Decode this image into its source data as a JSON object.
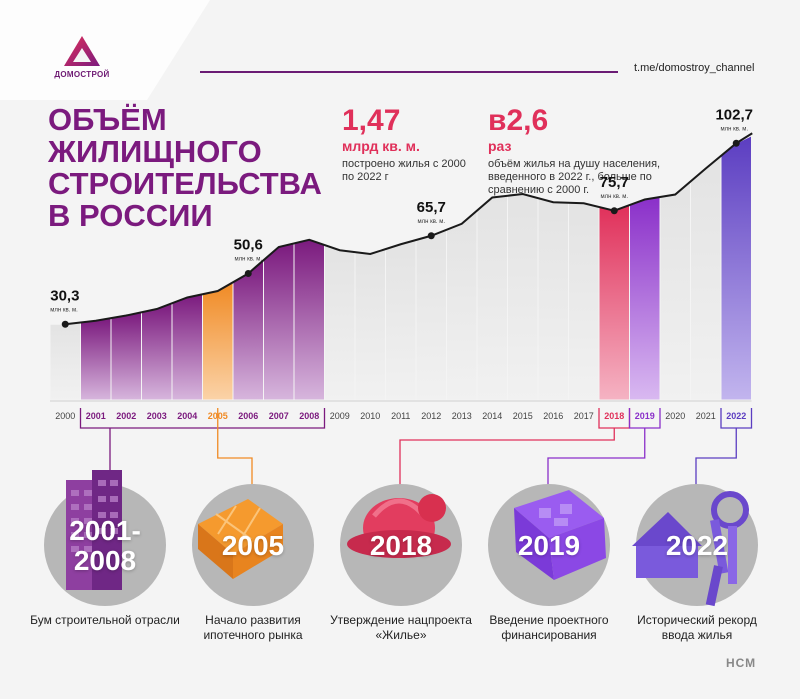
{
  "header": {
    "logo_text": "ДОМОСТРОЙ",
    "channel": "t.me/domostroy_channel"
  },
  "title": "Объём жилищного строительства в России",
  "stats": [
    {
      "value": "1,47",
      "unit": "млрд кв. м.",
      "desc": "построено жилья с 2000 по 2022 г"
    },
    {
      "value": "в2,6",
      "unit": "раз",
      "desc": "объём жилья на душу населения, введенного в 2022 г., больше по сравнению с 2000 г."
    }
  ],
  "colors": {
    "brand_purple": "#7b1a7e",
    "accent_red": "#e0305a",
    "orange": "#f08a24",
    "violet": "#8a2fc9",
    "indigo": "#5b3dc1",
    "grey_bar": "#e6e6e6"
  },
  "chart_data": {
    "type": "area",
    "unit_label": "млн кв. м.",
    "x": [
      "2000",
      "2001",
      "2002",
      "2003",
      "2004",
      "2005",
      "2006",
      "2007",
      "2008",
      "2009",
      "2010",
      "2011",
      "2012",
      "2013",
      "2014",
      "2015",
      "2016",
      "2017",
      "2018",
      "2019",
      "2020",
      "2021",
      "2022"
    ],
    "values": [
      30.3,
      31.7,
      33.8,
      36.4,
      41.0,
      43.6,
      50.6,
      61.2,
      64.1,
      59.9,
      58.4,
      62.3,
      65.7,
      70.5,
      81.0,
      82.4,
      79.1,
      78.7,
      75.7,
      80.2,
      82.2,
      92.6,
      102.7
    ],
    "ylim": [
      0,
      110
    ],
    "labeled_points": [
      {
        "year": "2000",
        "value_label": "30,3"
      },
      {
        "year": "2006",
        "value_label": "50,6"
      },
      {
        "year": "2012",
        "value_label": "65,7"
      },
      {
        "year": "2018",
        "value_label": "75,7"
      },
      {
        "year": "2022",
        "value_label": "102,7"
      }
    ],
    "highlighted_years": [
      "2001",
      "2002",
      "2003",
      "2004",
      "2005",
      "2006",
      "2007",
      "2008",
      "2018",
      "2019",
      "2022"
    ]
  },
  "milestones": [
    {
      "year_label": "2001-\n2008",
      "caption": "Бум строительной отрасли",
      "icon": "building-icon"
    },
    {
      "year_label": "2005",
      "caption": "Начало развития ипотечного рынка",
      "icon": "apartment-plan-icon"
    },
    {
      "year_label": "2018",
      "caption": "Утверждение нацпроекта «Жилье»",
      "icon": "helmet-icon"
    },
    {
      "year_label": "2019",
      "caption": "Введение проектного финансирования",
      "icon": "money-box-icon"
    },
    {
      "year_label": "2022",
      "caption": "Исторический рекорд ввода жилья",
      "icon": "house-keys-icon"
    }
  ],
  "footer": {
    "brand": "НСМ"
  }
}
